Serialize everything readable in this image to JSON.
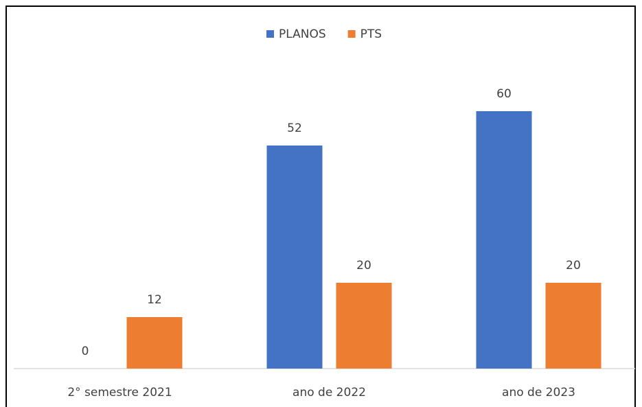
{
  "chart_data": {
    "type": "bar",
    "categories": [
      "2° semestre 2021",
      "ano de 2022",
      "ano de 2023"
    ],
    "series": [
      {
        "name": "PLANOS",
        "color": "#4472c4",
        "values": [
          0,
          52,
          60
        ]
      },
      {
        "name": "PTS",
        "color": "#ed7d31",
        "values": [
          12,
          20,
          20
        ]
      }
    ],
    "legend": "top"
  }
}
